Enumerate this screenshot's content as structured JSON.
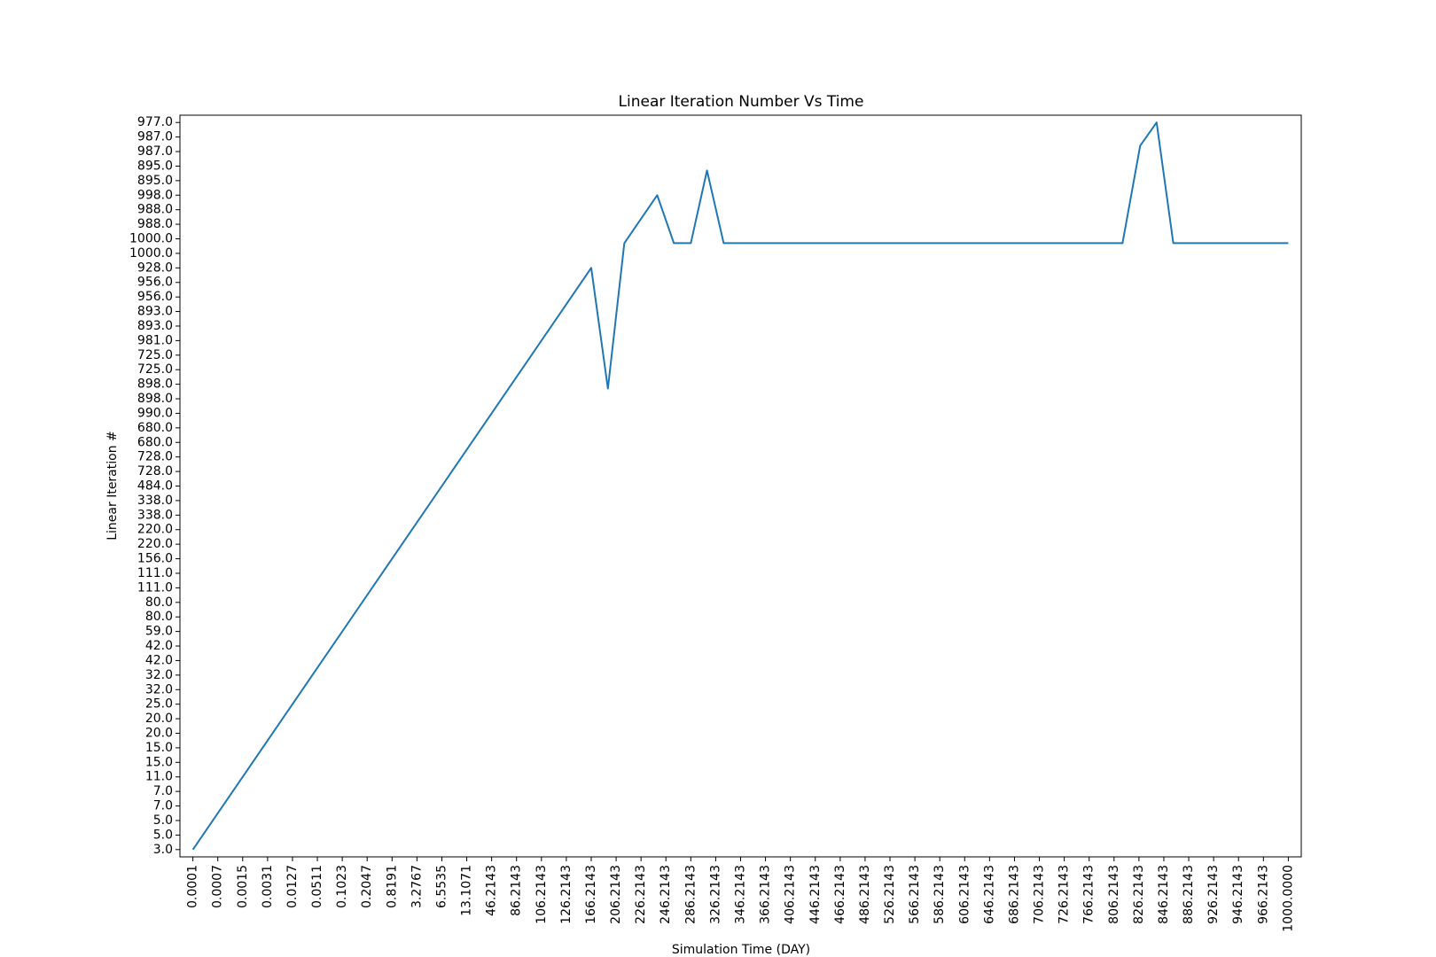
{
  "chart_data": {
    "type": "line",
    "title": "Linear Iteration Number Vs Time",
    "xlabel": "Simulation Time (DAY)",
    "ylabel": "Linear Iteration #",
    "xlim": [
      -0.52,
      44.52
    ],
    "ylim": [
      -0.5,
      50.5
    ],
    "xticks": [
      {
        "value": 0,
        "label": "0.0001"
      },
      {
        "value": 1,
        "label": "0.0007"
      },
      {
        "value": 2,
        "label": "0.0015"
      },
      {
        "value": 3,
        "label": "0.0031"
      },
      {
        "value": 4,
        "label": "0.0127"
      },
      {
        "value": 5,
        "label": "0.0511"
      },
      {
        "value": 6,
        "label": "0.1023"
      },
      {
        "value": 7,
        "label": "0.2047"
      },
      {
        "value": 8,
        "label": "0.8191"
      },
      {
        "value": 9,
        "label": "3.2767"
      },
      {
        "value": 10,
        "label": "6.5535"
      },
      {
        "value": 11,
        "label": "13.1071"
      },
      {
        "value": 12,
        "label": "46.2143"
      },
      {
        "value": 13,
        "label": "86.2143"
      },
      {
        "value": 14,
        "label": "106.2143"
      },
      {
        "value": 15,
        "label": "126.2143"
      },
      {
        "value": 16,
        "label": "166.2143"
      },
      {
        "value": 17,
        "label": "206.2143"
      },
      {
        "value": 18,
        "label": "226.2143"
      },
      {
        "value": 19,
        "label": "246.2143"
      },
      {
        "value": 20,
        "label": "286.2143"
      },
      {
        "value": 21,
        "label": "326.2143"
      },
      {
        "value": 22,
        "label": "346.2143"
      },
      {
        "value": 23,
        "label": "366.2143"
      },
      {
        "value": 24,
        "label": "406.2143"
      },
      {
        "value": 25,
        "label": "446.2143"
      },
      {
        "value": 26,
        "label": "466.2143"
      },
      {
        "value": 27,
        "label": "486.2143"
      },
      {
        "value": 28,
        "label": "526.2143"
      },
      {
        "value": 29,
        "label": "566.2143"
      },
      {
        "value": 30,
        "label": "586.2143"
      },
      {
        "value": 31,
        "label": "606.2143"
      },
      {
        "value": 32,
        "label": "646.2143"
      },
      {
        "value": 33,
        "label": "686.2143"
      },
      {
        "value": 34,
        "label": "706.2143"
      },
      {
        "value": 35,
        "label": "726.2143"
      },
      {
        "value": 36,
        "label": "766.2143"
      },
      {
        "value": 37,
        "label": "806.2143"
      },
      {
        "value": 38,
        "label": "826.2143"
      },
      {
        "value": 39,
        "label": "846.2143"
      },
      {
        "value": 40,
        "label": "886.2143"
      },
      {
        "value": 41,
        "label": "926.2143"
      },
      {
        "value": 42,
        "label": "946.2143"
      },
      {
        "value": 43,
        "label": "966.2143"
      },
      {
        "value": 44,
        "label": "1000.0000"
      }
    ],
    "yticks": [
      {
        "value": 0,
        "label": "3.0"
      },
      {
        "value": 1,
        "label": "5.0"
      },
      {
        "value": 2,
        "label": "5.0"
      },
      {
        "value": 3,
        "label": "7.0"
      },
      {
        "value": 4,
        "label": "7.0"
      },
      {
        "value": 5,
        "label": "11.0"
      },
      {
        "value": 6,
        "label": "15.0"
      },
      {
        "value": 7,
        "label": "15.0"
      },
      {
        "value": 8,
        "label": "20.0"
      },
      {
        "value": 9,
        "label": "20.0"
      },
      {
        "value": 10,
        "label": "25.0"
      },
      {
        "value": 11,
        "label": "32.0"
      },
      {
        "value": 12,
        "label": "32.0"
      },
      {
        "value": 13,
        "label": "42.0"
      },
      {
        "value": 14,
        "label": "42.0"
      },
      {
        "value": 15,
        "label": "59.0"
      },
      {
        "value": 16,
        "label": "80.0"
      },
      {
        "value": 17,
        "label": "80.0"
      },
      {
        "value": 18,
        "label": "111.0"
      },
      {
        "value": 19,
        "label": "111.0"
      },
      {
        "value": 20,
        "label": "156.0"
      },
      {
        "value": 21,
        "label": "220.0"
      },
      {
        "value": 22,
        "label": "220.0"
      },
      {
        "value": 23,
        "label": "338.0"
      },
      {
        "value": 24,
        "label": "338.0"
      },
      {
        "value": 25,
        "label": "484.0"
      },
      {
        "value": 26,
        "label": "728.0"
      },
      {
        "value": 27,
        "label": "728.0"
      },
      {
        "value": 28,
        "label": "680.0"
      },
      {
        "value": 29,
        "label": "680.0"
      },
      {
        "value": 30,
        "label": "990.0"
      },
      {
        "value": 31,
        "label": "898.0"
      },
      {
        "value": 32,
        "label": "898.0"
      },
      {
        "value": 33,
        "label": "725.0"
      },
      {
        "value": 34,
        "label": "725.0"
      },
      {
        "value": 35,
        "label": "981.0"
      },
      {
        "value": 36,
        "label": "893.0"
      },
      {
        "value": 37,
        "label": "893.0"
      },
      {
        "value": 38,
        "label": "956.0"
      },
      {
        "value": 39,
        "label": "956.0"
      },
      {
        "value": 40,
        "label": "928.0"
      },
      {
        "value": 41,
        "label": "1000.0"
      },
      {
        "value": 42,
        "label": "1000.0"
      },
      {
        "value": 43,
        "label": "988.0"
      },
      {
        "value": 44,
        "label": "988.0"
      },
      {
        "value": 45,
        "label": "998.0"
      },
      {
        "value": 46,
        "label": "895.0"
      },
      {
        "value": 47,
        "label": "895.0"
      },
      {
        "value": 48,
        "label": "987.0"
      },
      {
        "value": 49,
        "label": "987.0"
      },
      {
        "value": 50,
        "label": "977.0"
      }
    ],
    "x": [
      0,
      16,
      16.67,
      17.33,
      18.65,
      19.32,
      20,
      20.65,
      21.32,
      37.34,
      38.05,
      38.71,
      39.38,
      44
    ],
    "series": [
      {
        "color": "#1f77b4",
        "values": [
          0,
          40,
          31.7,
          41.7,
          45,
          41.7,
          41.7,
          46.7,
          41.7,
          41.7,
          48.4,
          50,
          41.7,
          41.7
        ]
      }
    ]
  }
}
